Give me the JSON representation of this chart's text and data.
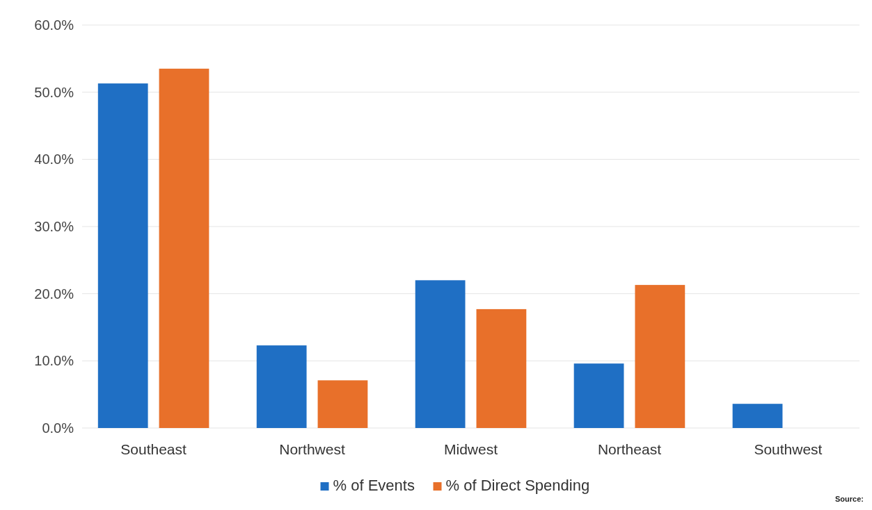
{
  "chart_data": {
    "type": "bar",
    "categories": [
      "Southeast",
      "Northwest",
      "Midwest",
      "Northeast",
      "Southwest"
    ],
    "series": [
      {
        "name": "% of Events",
        "color": "#1f6fc4",
        "values": [
          51.3,
          12.3,
          22.0,
          9.6,
          3.6
        ]
      },
      {
        "name": "% of Direct Spending",
        "color": "#e8702a",
        "values": [
          53.5,
          7.1,
          17.7,
          21.3,
          null
        ]
      }
    ],
    "ylim": [
      0,
      60
    ],
    "yticks": [
      {
        "value": 0,
        "label": "0.0%"
      },
      {
        "value": 10,
        "label": "10.0%"
      },
      {
        "value": 20,
        "label": "20.0%"
      },
      {
        "value": 30,
        "label": "30.0%"
      },
      {
        "value": 40,
        "label": "40.0%"
      },
      {
        "value": 50,
        "label": "50.0%"
      },
      {
        "value": 60,
        "label": "60.0%"
      }
    ],
    "grid": "y",
    "legend": "bottom",
    "annotations": [
      "Source:"
    ]
  }
}
